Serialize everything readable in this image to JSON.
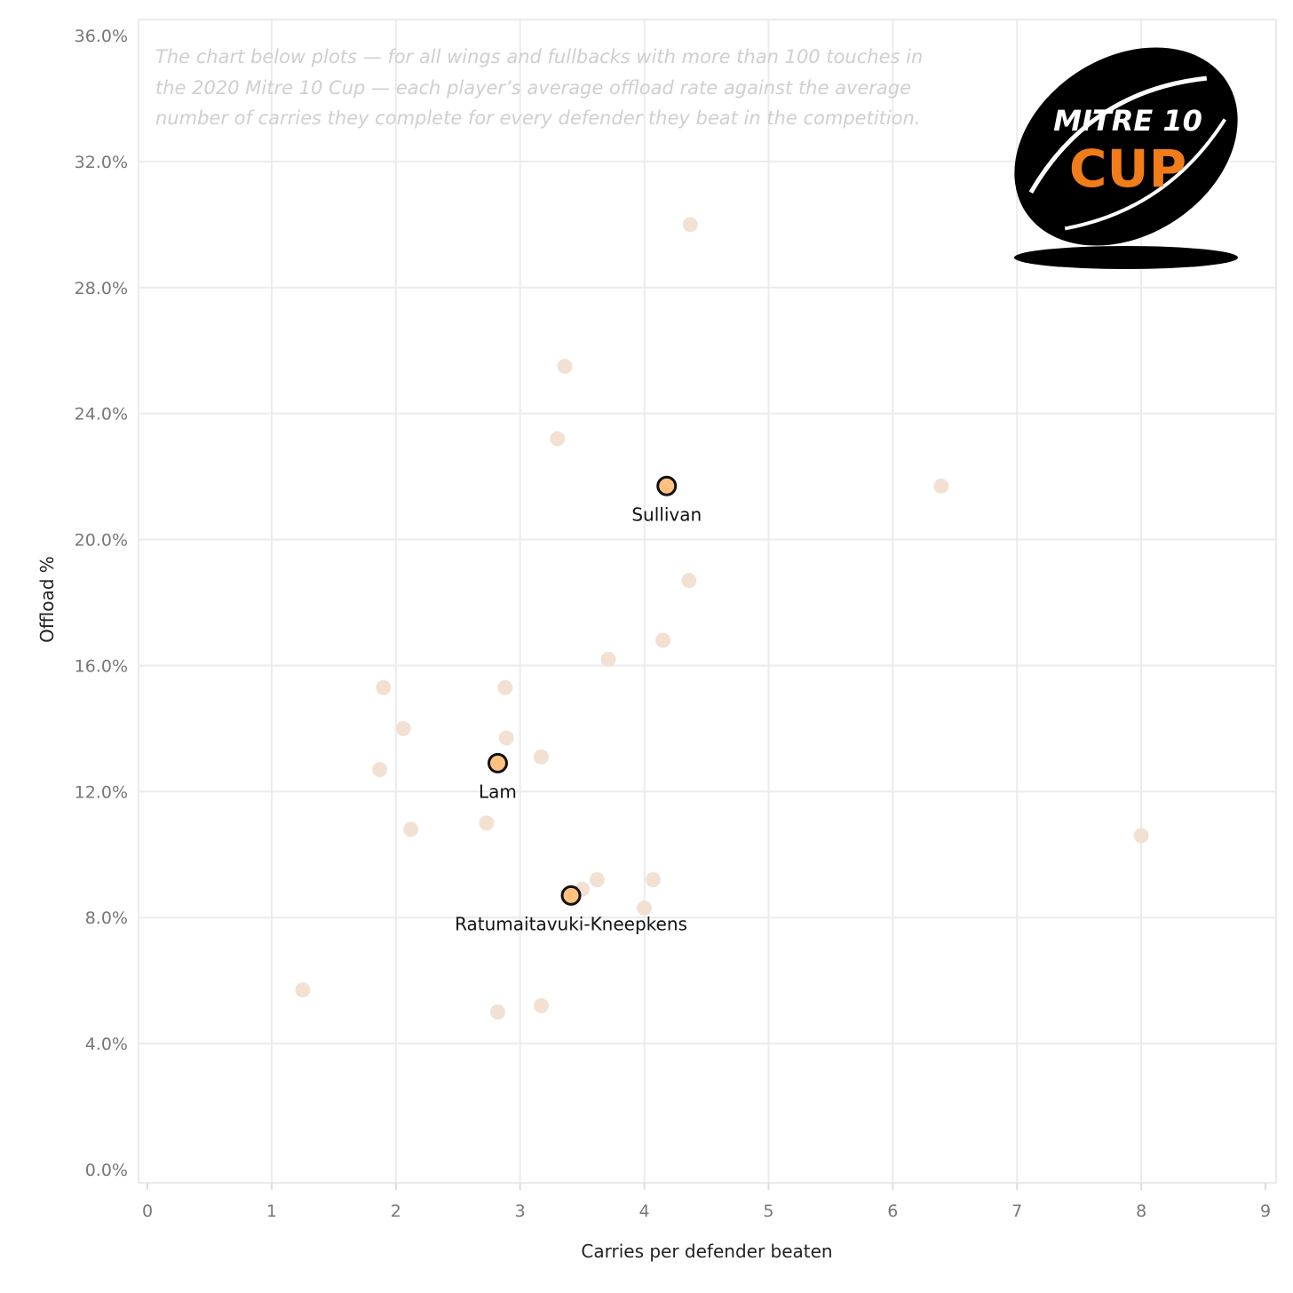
{
  "chart_data": {
    "type": "scatter",
    "title": "",
    "xlabel": "Carries per defender beaten",
    "ylabel": "Offload %",
    "xlim": [
      0,
      9
    ],
    "ylim": [
      0,
      36
    ],
    "x_ticks": [
      "0",
      "1",
      "2",
      "3",
      "4",
      "5",
      "6",
      "7",
      "8",
      "9"
    ],
    "y_ticks": [
      "0.0%",
      "4.0%",
      "8.0%",
      "12.0%",
      "16.0%",
      "20.0%",
      "24.0%",
      "28.0%",
      "32.0%",
      "36.0%"
    ],
    "grid": true,
    "annotation_lines": [
      "The chart below plots — for all wings and fullbacks with more than 100 touches in",
      "the 2020 Mitre 10 Cup — each player’s average offload rate against the average",
      "number of carries they complete for every defender they beat in the competition."
    ],
    "logo": {
      "line1": "MITRE 10",
      "line2": "CUP"
    },
    "colors": {
      "background_point": "#f2e1d3",
      "highlight_fill": "#ffc080",
      "highlight_stroke": "#111111",
      "grid": "#ebebeb",
      "logo_orange": "#f07c1a"
    },
    "points": [
      {
        "x": 4.37,
        "y": 30.0
      },
      {
        "x": 3.36,
        "y": 25.5
      },
      {
        "x": 3.3,
        "y": 23.2
      },
      {
        "x": 6.39,
        "y": 21.7
      },
      {
        "x": 4.36,
        "y": 18.7
      },
      {
        "x": 4.15,
        "y": 16.8
      },
      {
        "x": 3.71,
        "y": 16.2
      },
      {
        "x": 1.9,
        "y": 15.3
      },
      {
        "x": 2.88,
        "y": 15.3
      },
      {
        "x": 2.06,
        "y": 14.0
      },
      {
        "x": 2.89,
        "y": 13.7
      },
      {
        "x": 3.17,
        "y": 13.1
      },
      {
        "x": 1.87,
        "y": 12.7
      },
      {
        "x": 2.73,
        "y": 11.0
      },
      {
        "x": 2.12,
        "y": 10.8
      },
      {
        "x": 8.0,
        "y": 10.6
      },
      {
        "x": 3.62,
        "y": 9.2
      },
      {
        "x": 4.07,
        "y": 9.2
      },
      {
        "x": 3.5,
        "y": 8.9
      },
      {
        "x": 4.0,
        "y": 8.3
      },
      {
        "x": 1.25,
        "y": 5.7
      },
      {
        "x": 3.17,
        "y": 5.2
      },
      {
        "x": 2.82,
        "y": 5.0
      }
    ],
    "highlighted": [
      {
        "name": "Sullivan",
        "x": 4.18,
        "y": 21.7
      },
      {
        "name": "Lam",
        "x": 2.82,
        "y": 12.9
      },
      {
        "name": "Ratumaitavuki-Kneepkens",
        "x": 3.41,
        "y": 8.7
      }
    ]
  }
}
